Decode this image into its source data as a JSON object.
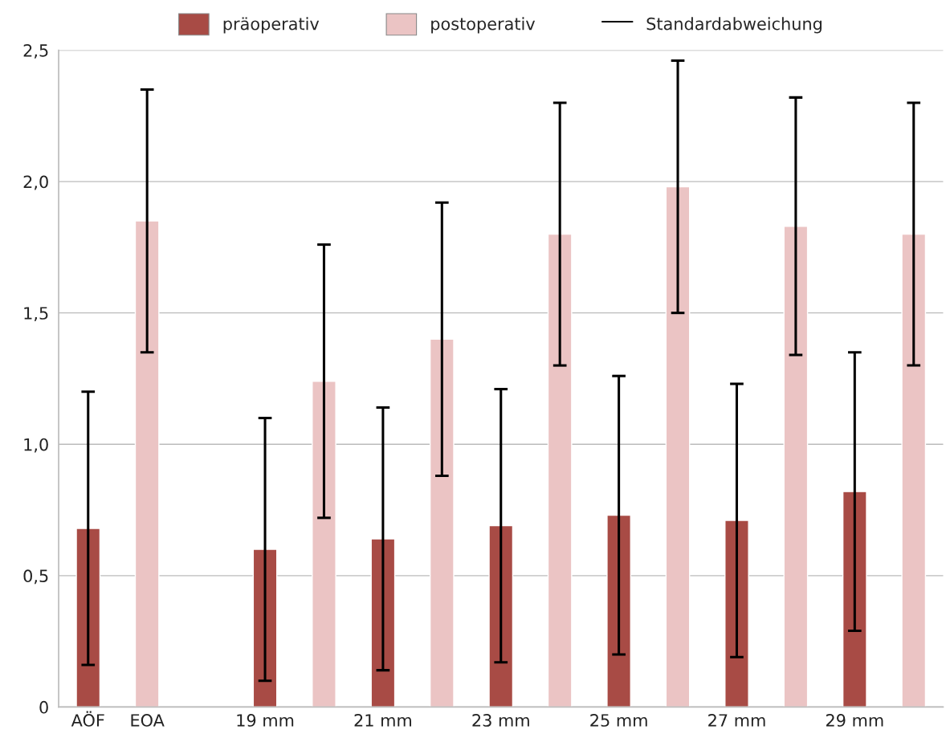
{
  "chart_data": {
    "type": "bar",
    "categories": [
      "AÖF",
      "EOA",
      null,
      "19 mm",
      null,
      "21 mm",
      null,
      "23 mm",
      null,
      "25 mm",
      null,
      "27 mm",
      null,
      "29 mm",
      null
    ],
    "series": [
      {
        "name": "präoperativ",
        "color": "#a84b45",
        "values": [
          0.68,
          null,
          null,
          0.6,
          null,
          0.64,
          null,
          0.69,
          null,
          0.73,
          null,
          0.71,
          null,
          0.82,
          null
        ],
        "errors": [
          0.52,
          null,
          null,
          0.5,
          null,
          0.5,
          null,
          0.52,
          null,
          0.53,
          null,
          0.52,
          null,
          0.53,
          null
        ]
      },
      {
        "name": "postoperativ",
        "color": "#ebc4c4",
        "values": [
          null,
          1.85,
          null,
          null,
          1.24,
          null,
          1.4,
          null,
          1.8,
          null,
          1.98,
          null,
          1.83,
          null,
          1.8
        ],
        "errors": [
          null,
          0.5,
          null,
          null,
          0.52,
          null,
          0.52,
          null,
          0.5,
          null,
          0.48,
          null,
          0.49,
          null,
          0.5
        ]
      }
    ],
    "ylim": [
      0,
      2.5
    ],
    "yticks": [
      0,
      {
        "value": 0.5,
        "label": "0,5"
      },
      {
        "value": 1.0,
        "label": "1,0"
      },
      {
        "value": 1.5,
        "label": "1,5"
      },
      {
        "value": 2.0,
        "label": "2,0"
      },
      {
        "value": 2.5,
        "label": "2,5"
      }
    ],
    "grid": "y",
    "legend": "top",
    "annotations": [
      "Standardabweichung"
    ]
  }
}
